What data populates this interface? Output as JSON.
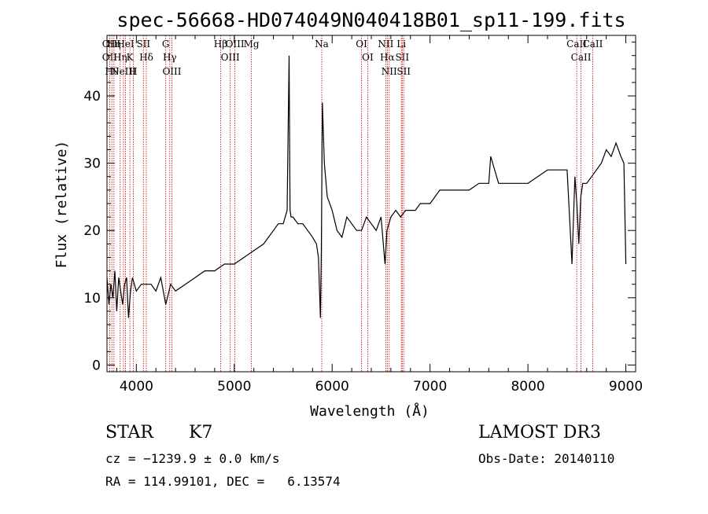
{
  "chart_data": {
    "type": "line",
    "title": "spec-56668-HD074049N040418B01_sp11-199.fits",
    "xlabel": "Wavelength (Å)",
    "ylabel": "Flux (relative)",
    "xlim": [
      3700,
      9100
    ],
    "ylim": [
      -1,
      49
    ],
    "xticks": [
      4000,
      5000,
      6000,
      7000,
      8000,
      9000
    ],
    "yticks": [
      0,
      10,
      20,
      30,
      40
    ],
    "grid": false,
    "series": [
      {
        "x": [
          3700,
          3720,
          3740,
          3760,
          3780,
          3800,
          3820,
          3840,
          3860,
          3880,
          3900,
          3920,
          3940,
          3960,
          3980,
          4000,
          4050,
          4100,
          4150,
          4200,
          4250,
          4300,
          4350,
          4400,
          4500,
          4600,
          4700,
          4800,
          4900,
          5000,
          5100,
          5200,
          5300,
          5400,
          5450,
          5500,
          5540,
          5560,
          5570,
          5580,
          5600,
          5650,
          5700,
          5750,
          5800,
          5840,
          5860,
          5880,
          5890,
          5900,
          5920,
          5950,
          6000,
          6050,
          6100,
          6150,
          6200,
          6250,
          6300,
          6350,
          6400,
          6450,
          6500,
          6540,
          6560,
          6580,
          6600,
          6650,
          6700,
          6750,
          6800,
          6850,
          6900,
          7000,
          7100,
          7200,
          7300,
          7400,
          7500,
          7600,
          7620,
          7700,
          7800,
          7900,
          8000,
          8100,
          8200,
          8300,
          8400,
          8450,
          8480,
          8500,
          8520,
          8540,
          8560,
          8600,
          8650,
          8700,
          8750,
          8800,
          8850,
          8900,
          8950,
          8980,
          9000
        ],
        "y": [
          13,
          9,
          12,
          10,
          14,
          8,
          13,
          11,
          9,
          12,
          13,
          7,
          11,
          13,
          12,
          11,
          12,
          12,
          12,
          11,
          13,
          9,
          12,
          11,
          12,
          13,
          14,
          14,
          15,
          15,
          16,
          17,
          18,
          20,
          21,
          21,
          23,
          46,
          23,
          22,
          22,
          21,
          21,
          20,
          19,
          18,
          16,
          7,
          17,
          39,
          30,
          25,
          23,
          20,
          19,
          22,
          21,
          20,
          20,
          22,
          21,
          20,
          22,
          15,
          20,
          21,
          22,
          23,
          22,
          23,
          23,
          23,
          24,
          24,
          26,
          26,
          26,
          26,
          27,
          27,
          31,
          27,
          27,
          27,
          27,
          28,
          29,
          29,
          29,
          15,
          28,
          24,
          18,
          25,
          27,
          27,
          28,
          29,
          30,
          32,
          31,
          33,
          31,
          30,
          15
        ]
      }
    ],
    "lines": [
      {
        "wl": 3727,
        "labels": [
          "OII",
          "OII"
        ]
      },
      {
        "wl": 3750,
        "labels": [
          "Hθ"
        ]
      },
      {
        "wl": 3771,
        "labels": [
          "Hη"
        ]
      },
      {
        "wl": 3835,
        "labels": [
          "Hη"
        ]
      },
      {
        "wl": 3869,
        "labels": [
          "NeIII"
        ]
      },
      {
        "wl": 3889,
        "labels": [
          "HeI"
        ]
      },
      {
        "wl": 3934,
        "labels": [
          "K"
        ]
      },
      {
        "wl": 3968,
        "labels": [
          "H"
        ]
      },
      {
        "wl": 4072,
        "labels": [
          "SII"
        ]
      },
      {
        "wl": 4102,
        "labels": [
          "Hδ"
        ]
      },
      {
        "wl": 4300,
        "labels": [
          "G"
        ]
      },
      {
        "wl": 4341,
        "labels": [
          "Hγ"
        ]
      },
      {
        "wl": 4363,
        "labels": [
          "OIII"
        ]
      },
      {
        "wl": 4861,
        "labels": [
          "Hβ"
        ]
      },
      {
        "wl": 4959,
        "labels": [
          "OIII"
        ]
      },
      {
        "wl": 5007,
        "labels": [
          "OIII"
        ]
      },
      {
        "wl": 5175,
        "labels": [
          "Mg"
        ]
      },
      {
        "wl": 5894,
        "labels": [
          "Na"
        ]
      },
      {
        "wl": 6300,
        "labels": [
          "OI"
        ]
      },
      {
        "wl": 6363,
        "labels": [
          "OI"
        ]
      },
      {
        "wl": 6548,
        "labels": [
          "NII"
        ]
      },
      {
        "wl": 6563,
        "labels": [
          "Hα"
        ]
      },
      {
        "wl": 6583,
        "labels": [
          "NII"
        ]
      },
      {
        "wl": 6707,
        "labels": [
          "Li"
        ]
      },
      {
        "wl": 6716,
        "labels": [
          "SII"
        ]
      },
      {
        "wl": 6731,
        "labels": [
          "SII"
        ]
      },
      {
        "wl": 8498,
        "labels": [
          "CaII"
        ]
      },
      {
        "wl": 8542,
        "labels": [
          "CaII"
        ]
      },
      {
        "wl": 8662,
        "labels": [
          "CaII"
        ]
      }
    ],
    "line_color": "#000000",
    "marker_color": "#cc0000"
  },
  "info": {
    "class_label": "STAR",
    "subclass": "K7",
    "cz": "cz = −1239.9 ± 0.0 km/s",
    "coords": "RA = 114.99101, DEC =   6.13574",
    "survey": "LAMOST DR3",
    "obs_date": "Obs-Date: 20140110"
  }
}
